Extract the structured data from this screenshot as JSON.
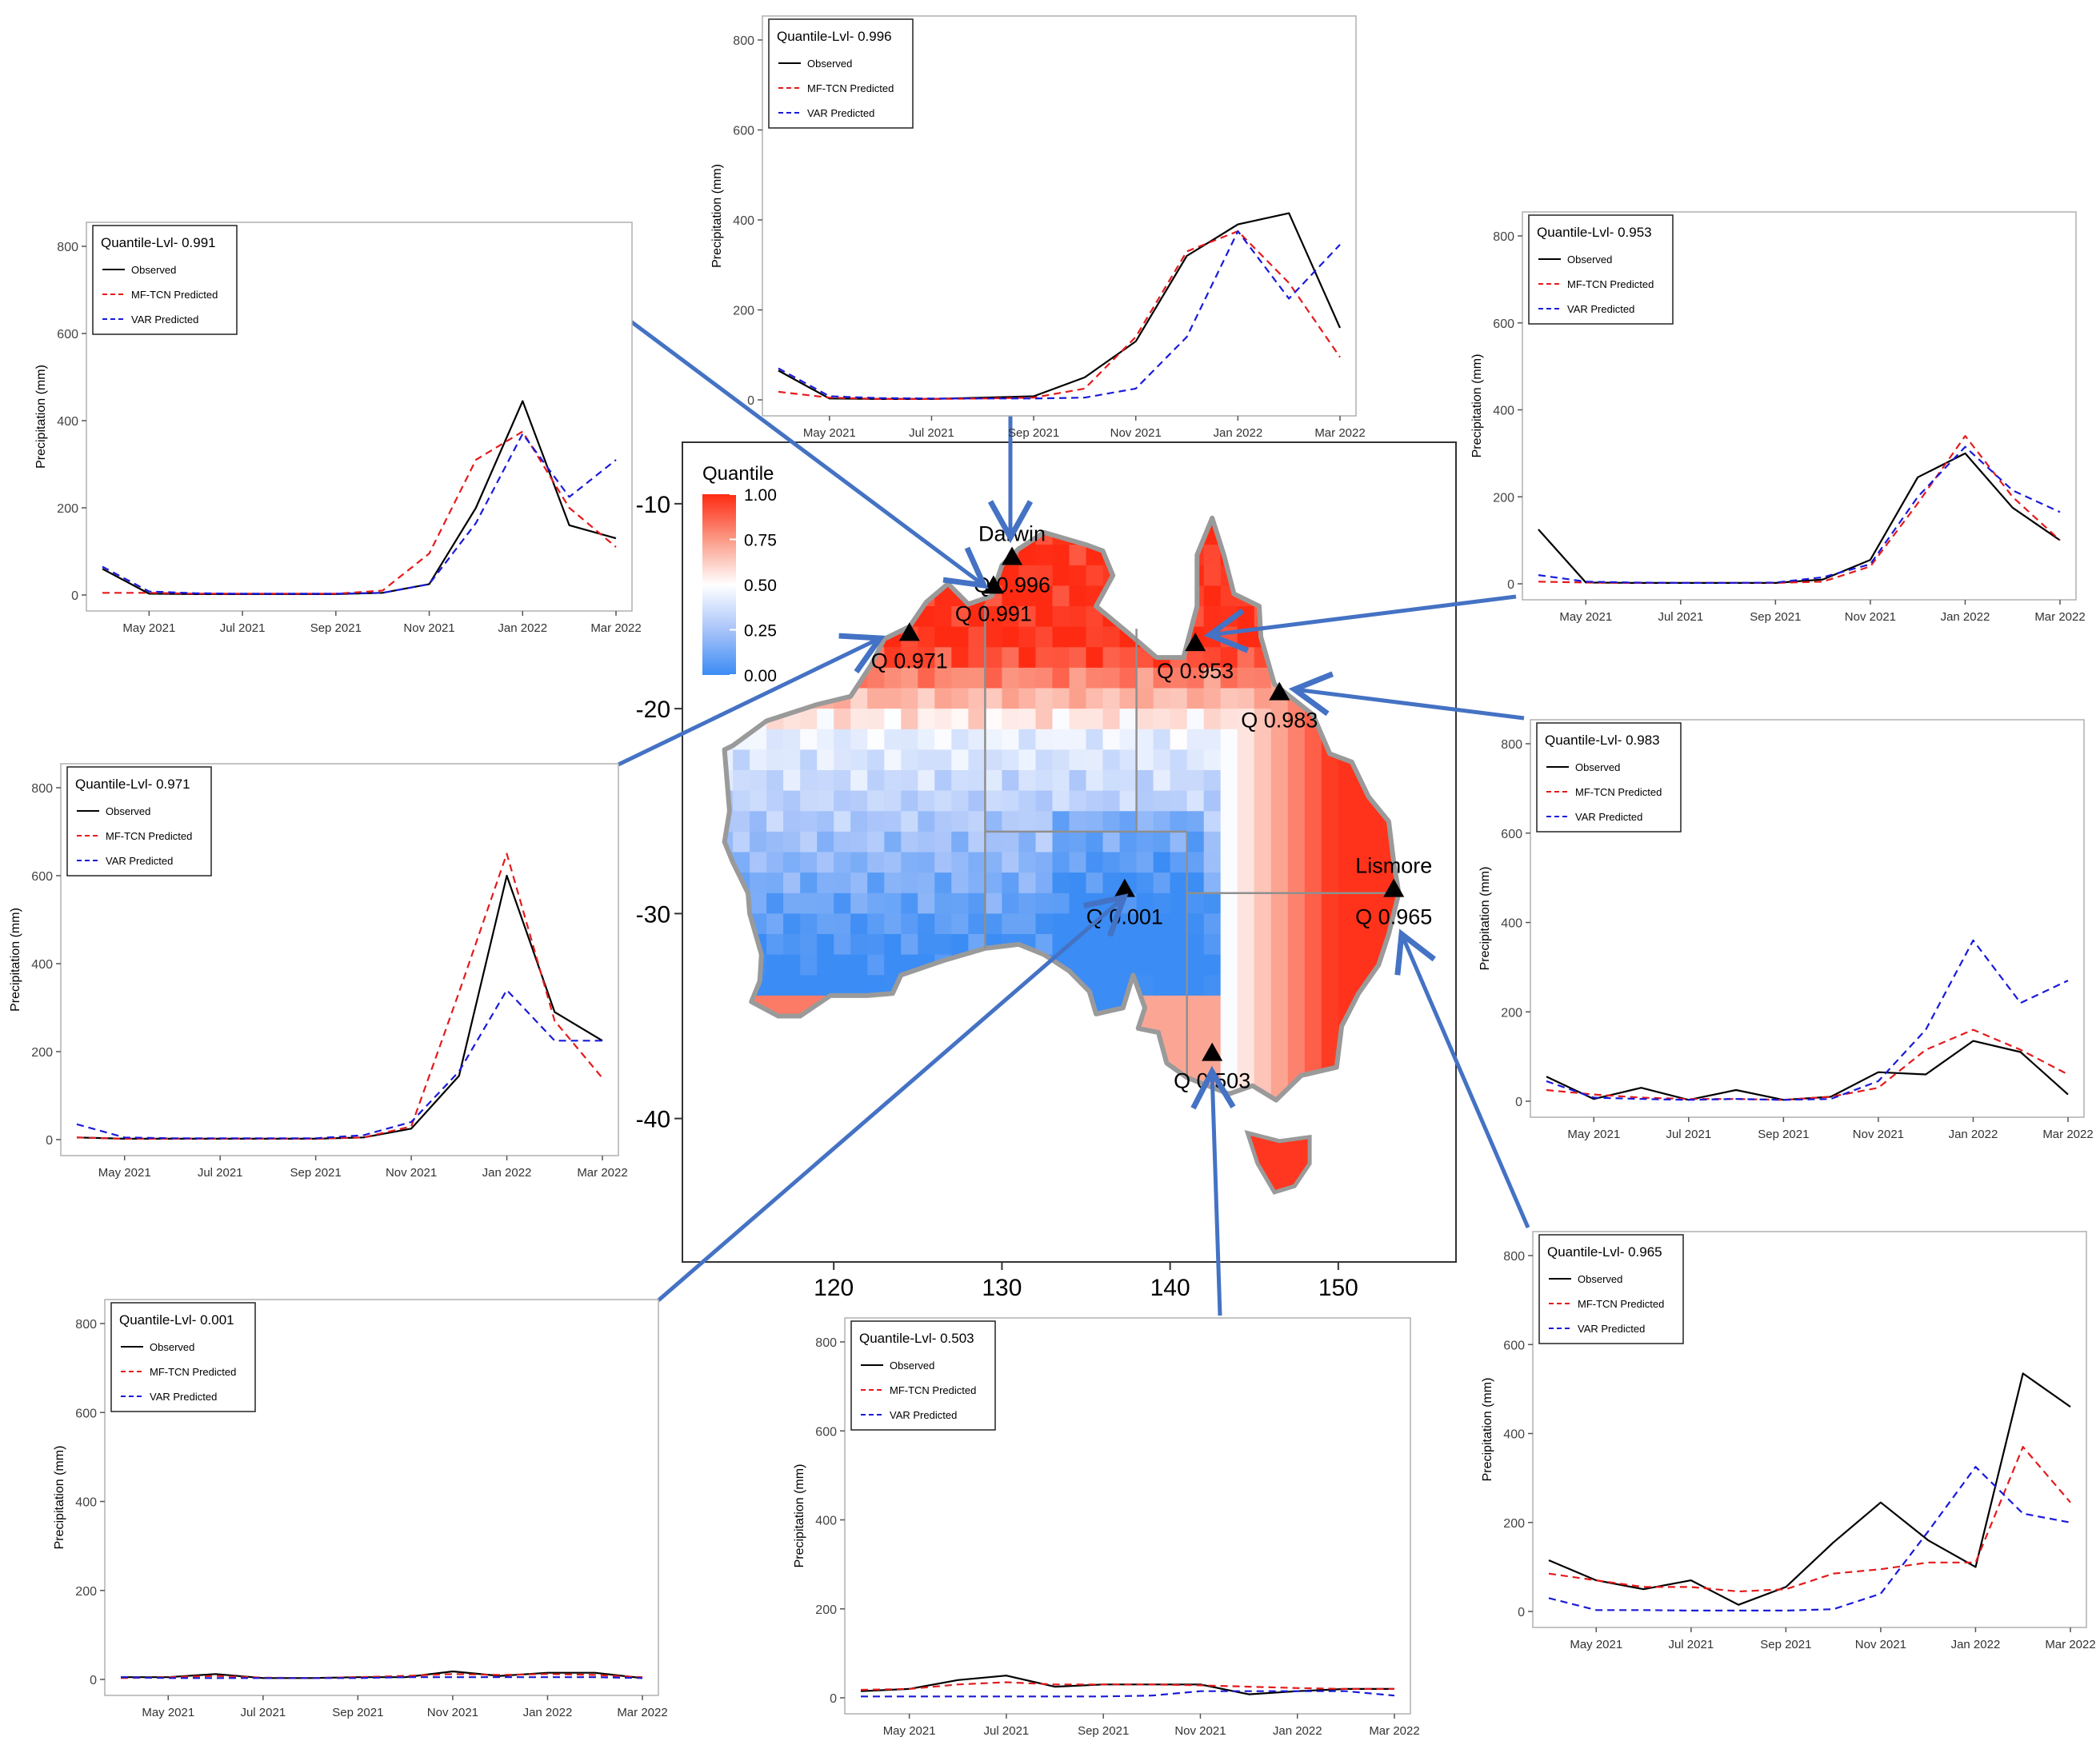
{
  "map": {
    "legend_title": "Quantile",
    "legend_ticks": [
      "1.00",
      "0.75",
      "0.50",
      "0.25",
      "0.00"
    ],
    "x_ticks": [
      "120",
      "130",
      "140",
      "150"
    ],
    "y_ticks": [
      "-10",
      "-20",
      "-30",
      "-40"
    ],
    "xlim": [
      111,
      157
    ],
    "ylim": [
      -47,
      -7
    ],
    "stations": [
      {
        "name": "Darwin",
        "q": "Q 0.996",
        "lon": 130.6,
        "lat": -12.6
      },
      {
        "name": "",
        "q": "Q 0.991",
        "lon": 129.5,
        "lat": -14.0
      },
      {
        "name": "",
        "q": "Q 0.971",
        "lon": 124.5,
        "lat": -16.3
      },
      {
        "name": "",
        "q": "Q 0.953",
        "lon": 141.5,
        "lat": -16.8
      },
      {
        "name": "",
        "q": "Q 0.983",
        "lon": 146.5,
        "lat": -19.2
      },
      {
        "name": "Lismore",
        "q": "Q 0.965",
        "lon": 153.3,
        "lat": -28.8
      },
      {
        "name": "",
        "q": "Q 0.001",
        "lon": 137.3,
        "lat": -28.8
      },
      {
        "name": "",
        "q": "Q 0.503",
        "lon": 142.5,
        "lat": -36.8
      }
    ]
  },
  "legend_labels": {
    "observed": "Observed",
    "mftcn": "MF-TCN Predicted",
    "var": "VAR Predicted"
  },
  "colors": {
    "observed": "#000000",
    "mftcn": "#e41a1c",
    "var": "#1a1adc",
    "arrow": "#4472c4"
  },
  "chart_data": [
    {
      "type": "line",
      "title": "Quantile-Lvl- 0.996",
      "ylabel": "Precipitation (mm)",
      "ylim": [
        0,
        800
      ],
      "y_ticks": [
        "0",
        "200",
        "400",
        "600",
        "800"
      ],
      "x_ticks": [
        "May 2021",
        "Jul 2021",
        "Sep 2021",
        "Nov 2021",
        "Jan 2022",
        "Mar 2022"
      ],
      "x_tick_index": [
        1,
        3,
        5,
        7,
        9,
        11
      ],
      "categories": [
        "Apr 2021",
        "May 2021",
        "Jun 2021",
        "Jul 2021",
        "Aug 2021",
        "Sep 2021",
        "Oct 2021",
        "Nov 2021",
        "Dec 2021",
        "Jan 2022",
        "Feb 2022",
        "Mar 2022"
      ],
      "series": [
        {
          "name": "Observed",
          "values": [
            65,
            3,
            2,
            2,
            5,
            8,
            50,
            130,
            320,
            390,
            415,
            160
          ]
        },
        {
          "name": "MF-TCN Predicted",
          "values": [
            18,
            5,
            2,
            2,
            3,
            5,
            25,
            140,
            330,
            375,
            260,
            95
          ]
        },
        {
          "name": "VAR Predicted",
          "values": [
            70,
            8,
            4,
            3,
            3,
            3,
            5,
            25,
            140,
            375,
            225,
            345
          ]
        }
      ]
    },
    {
      "type": "line",
      "title": "Quantile-Lvl- 0.991",
      "ylabel": "Precipitation (mm)",
      "ylim": [
        0,
        800
      ],
      "y_ticks": [
        "0",
        "200",
        "400",
        "600",
        "800"
      ],
      "x_ticks": [
        "May 2021",
        "Jul 2021",
        "Sep 2021",
        "Nov 2021",
        "Jan 2022",
        "Mar 2022"
      ],
      "x_tick_index": [
        1,
        3,
        5,
        7,
        9,
        11
      ],
      "categories": [
        "Apr 2021",
        "May 2021",
        "Jun 2021",
        "Jul 2021",
        "Aug 2021",
        "Sep 2021",
        "Oct 2021",
        "Nov 2021",
        "Dec 2021",
        "Jan 2022",
        "Feb 2022",
        "Mar 2022"
      ],
      "series": [
        {
          "name": "Observed",
          "values": [
            60,
            3,
            2,
            2,
            2,
            2,
            5,
            25,
            200,
            445,
            160,
            130
          ]
        },
        {
          "name": "MF-TCN Predicted",
          "values": [
            5,
            5,
            3,
            3,
            3,
            3,
            10,
            95,
            310,
            375,
            200,
            110
          ]
        },
        {
          "name": "VAR Predicted",
          "values": [
            65,
            8,
            4,
            3,
            3,
            3,
            5,
            25,
            165,
            370,
            225,
            310
          ]
        }
      ]
    },
    {
      "type": "line",
      "title": "Quantile-Lvl- 0.953",
      "ylabel": "Precipitation (mm)",
      "ylim": [
        0,
        800
      ],
      "y_ticks": [
        "0",
        "200",
        "400",
        "600",
        "800"
      ],
      "x_ticks": [
        "May 2021",
        "Jul 2021",
        "Sep 2021",
        "Nov 2021",
        "Jan 2022",
        "Mar 2022"
      ],
      "x_tick_index": [
        1,
        3,
        5,
        7,
        9,
        11
      ],
      "categories": [
        "Apr 2021",
        "May 2021",
        "Jun 2021",
        "Jul 2021",
        "Aug 2021",
        "Sep 2021",
        "Oct 2021",
        "Nov 2021",
        "Dec 2021",
        "Jan 2022",
        "Feb 2022",
        "Mar 2022"
      ],
      "series": [
        {
          "name": "Observed",
          "values": [
            125,
            3,
            2,
            2,
            2,
            2,
            10,
            55,
            245,
            300,
            175,
            100
          ]
        },
        {
          "name": "MF-TCN Predicted",
          "values": [
            5,
            3,
            2,
            2,
            2,
            2,
            5,
            40,
            185,
            340,
            200,
            100
          ]
        },
        {
          "name": "VAR Predicted",
          "values": [
            20,
            5,
            3,
            2,
            2,
            3,
            15,
            45,
            200,
            315,
            215,
            165
          ]
        }
      ]
    },
    {
      "type": "line",
      "title": "Quantile-Lvl- 0.971",
      "ylabel": "Precipitation (mm)",
      "ylim": [
        0,
        800
      ],
      "y_ticks": [
        "0",
        "200",
        "400",
        "600",
        "800"
      ],
      "x_ticks": [
        "May 2021",
        "Jul 2021",
        "Sep 2021",
        "Nov 2021",
        "Jan 2022",
        "Mar 2022"
      ],
      "x_tick_index": [
        1,
        3,
        5,
        7,
        9,
        11
      ],
      "categories": [
        "Apr 2021",
        "May 2021",
        "Jun 2021",
        "Jul 2021",
        "Aug 2021",
        "Sep 2021",
        "Oct 2021",
        "Nov 2021",
        "Dec 2021",
        "Jan 2022",
        "Feb 2022",
        "Mar 2022"
      ],
      "series": [
        {
          "name": "Observed",
          "values": [
            5,
            2,
            2,
            2,
            2,
            2,
            5,
            25,
            145,
            600,
            290,
            225
          ]
        },
        {
          "name": "MF-TCN Predicted",
          "values": [
            5,
            2,
            2,
            2,
            2,
            2,
            5,
            30,
            335,
            650,
            270,
            140
          ]
        },
        {
          "name": "VAR Predicted",
          "values": [
            35,
            5,
            3,
            3,
            3,
            3,
            10,
            40,
            155,
            340,
            225,
            225
          ]
        }
      ]
    },
    {
      "type": "line",
      "title": "Quantile-Lvl- 0.983",
      "ylabel": "Precipitation (mm)",
      "ylim": [
        0,
        800
      ],
      "y_ticks": [
        "0",
        "200",
        "400",
        "600",
        "800"
      ],
      "x_ticks": [
        "May 2021",
        "Jul 2021",
        "Sep 2021",
        "Nov 2021",
        "Jan 2022",
        "Mar 2022"
      ],
      "x_tick_index": [
        1,
        3,
        5,
        7,
        9,
        11
      ],
      "categories": [
        "Apr 2021",
        "May 2021",
        "Jun 2021",
        "Jul 2021",
        "Aug 2021",
        "Sep 2021",
        "Oct 2021",
        "Nov 2021",
        "Dec 2021",
        "Jan 2022",
        "Feb 2022",
        "Mar 2022"
      ],
      "series": [
        {
          "name": "Observed",
          "values": [
            55,
            5,
            30,
            3,
            25,
            3,
            10,
            65,
            60,
            135,
            110,
            15
          ]
        },
        {
          "name": "MF-TCN Predicted",
          "values": [
            25,
            15,
            8,
            5,
            5,
            3,
            10,
            30,
            115,
            160,
            115,
            60
          ]
        },
        {
          "name": "VAR Predicted",
          "values": [
            45,
            8,
            5,
            3,
            5,
            3,
            5,
            45,
            160,
            360,
            220,
            270
          ]
        }
      ]
    },
    {
      "type": "line",
      "title": "Quantile-Lvl- 0.965",
      "ylabel": "Precipitation (mm)",
      "ylim": [
        0,
        800
      ],
      "y_ticks": [
        "0",
        "200",
        "400",
        "600",
        "800"
      ],
      "x_ticks": [
        "May 2021",
        "Jul 2021",
        "Sep 2021",
        "Nov 2021",
        "Jan 2022",
        "Mar 2022"
      ],
      "x_tick_index": [
        1,
        3,
        5,
        7,
        9,
        11
      ],
      "categories": [
        "Apr 2021",
        "May 2021",
        "Jun 2021",
        "Jul 2021",
        "Aug 2021",
        "Sep 2021",
        "Oct 2021",
        "Nov 2021",
        "Dec 2021",
        "Jan 2022",
        "Feb 2022",
        "Mar 2022"
      ],
      "series": [
        {
          "name": "Observed",
          "values": [
            115,
            70,
            50,
            70,
            15,
            55,
            155,
            245,
            160,
            100,
            535,
            460
          ]
        },
        {
          "name": "MF-TCN Predicted",
          "values": [
            85,
            70,
            55,
            55,
            45,
            50,
            85,
            95,
            110,
            110,
            370,
            245
          ]
        },
        {
          "name": "VAR Predicted",
          "values": [
            30,
            3,
            3,
            2,
            2,
            2,
            5,
            40,
            180,
            325,
            220,
            200
          ]
        }
      ]
    },
    {
      "type": "line",
      "title": "Quantile-Lvl- 0.001",
      "ylabel": "Precipitation (mm)",
      "ylim": [
        0,
        800
      ],
      "y_ticks": [
        "0",
        "200",
        "400",
        "600",
        "800"
      ],
      "x_ticks": [
        "May 2021",
        "Jul 2021",
        "Sep 2021",
        "Nov 2021",
        "Jan 2022",
        "Mar 2022"
      ],
      "x_tick_index": [
        1,
        3,
        5,
        7,
        9,
        11
      ],
      "categories": [
        "Apr 2021",
        "May 2021",
        "Jun 2021",
        "Jul 2021",
        "Aug 2021",
        "Sep 2021",
        "Oct 2021",
        "Nov 2021",
        "Dec 2021",
        "Jan 2022",
        "Feb 2022",
        "Mar 2022"
      ],
      "series": [
        {
          "name": "Observed",
          "values": [
            5,
            5,
            12,
            3,
            3,
            5,
            5,
            18,
            8,
            15,
            15,
            3
          ]
        },
        {
          "name": "MF-TCN Predicted",
          "values": [
            3,
            5,
            8,
            4,
            3,
            5,
            8,
            12,
            10,
            12,
            10,
            5
          ]
        },
        {
          "name": "VAR Predicted",
          "values": [
            5,
            3,
            3,
            3,
            3,
            3,
            5,
            5,
            5,
            5,
            5,
            3
          ]
        }
      ]
    },
    {
      "type": "line",
      "title": "Quantile-Lvl- 0.503",
      "ylabel": "Precipitation (mm)",
      "ylim": [
        0,
        800
      ],
      "y_ticks": [
        "0",
        "200",
        "400",
        "600",
        "800"
      ],
      "x_ticks": [
        "May 2021",
        "Jul 2021",
        "Sep 2021",
        "Nov 2021",
        "Jan 2022",
        "Mar 2022"
      ],
      "x_tick_index": [
        1,
        3,
        5,
        7,
        9,
        11
      ],
      "categories": [
        "Apr 2021",
        "May 2021",
        "Jun 2021",
        "Jul 2021",
        "Aug 2021",
        "Sep 2021",
        "Oct 2021",
        "Nov 2021",
        "Dec 2021",
        "Jan 2022",
        "Feb 2022",
        "Mar 2022"
      ],
      "series": [
        {
          "name": "Observed",
          "values": [
            15,
            20,
            40,
            50,
            25,
            30,
            30,
            30,
            8,
            15,
            20,
            20
          ]
        },
        {
          "name": "MF-TCN Predicted",
          "values": [
            18,
            20,
            30,
            35,
            30,
            30,
            30,
            28,
            25,
            22,
            20,
            20
          ]
        },
        {
          "name": "VAR Predicted",
          "values": [
            3,
            3,
            3,
            3,
            3,
            3,
            5,
            15,
            15,
            15,
            15,
            5
          ]
        }
      ]
    }
  ]
}
